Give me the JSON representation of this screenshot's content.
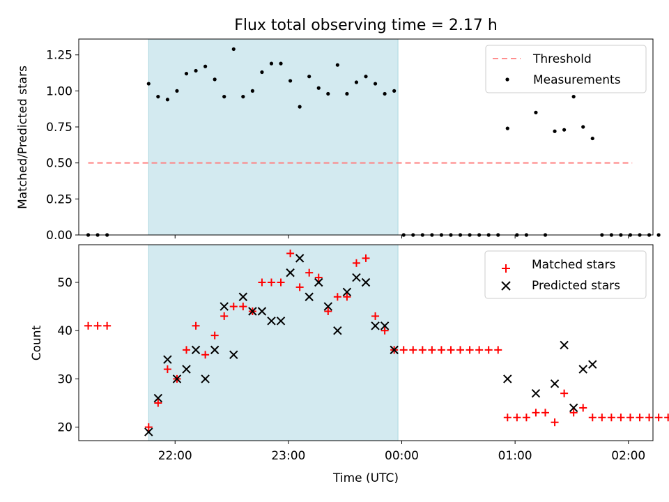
{
  "chart_data": [
    {
      "type": "scatter",
      "title": "Flux total observing time = 2.17 h",
      "xlabel": "",
      "ylabel": "Matched/Predicted stars",
      "ylim": [
        0,
        1.36
      ],
      "yticks": [
        "0.00",
        "0.25",
        "0.50",
        "0.75",
        "1.00",
        "1.25"
      ],
      "grid": false,
      "legend": {
        "placement": "top-right",
        "entries": [
          "Threshold",
          "Measurements"
        ]
      },
      "shaded_region": {
        "x": [
          "21:46",
          "23:58"
        ],
        "color": "#d3eaf0"
      },
      "threshold": {
        "name": "Threshold",
        "y": 0.5,
        "x": [
          "21:14",
          "02:02"
        ],
        "color": "#ff7f7f"
      },
      "series": [
        {
          "name": "Measurements",
          "color": "#000000",
          "points": [
            [
              "21:14",
              0.0
            ],
            [
              "21:19",
              0.0
            ],
            [
              "21:24",
              0.0
            ],
            [
              "21:46",
              1.05
            ],
            [
              "21:51",
              0.96
            ],
            [
              "21:56",
              0.94
            ],
            [
              "22:01",
              1.0
            ],
            [
              "22:06",
              1.12
            ],
            [
              "22:11",
              1.14
            ],
            [
              "22:16",
              1.17
            ],
            [
              "22:21",
              1.08
            ],
            [
              "22:26",
              0.96
            ],
            [
              "22:31",
              1.29
            ],
            [
              "22:36",
              0.96
            ],
            [
              "22:41",
              1.0
            ],
            [
              "22:46",
              1.13
            ],
            [
              "22:51",
              1.19
            ],
            [
              "22:56",
              1.19
            ],
            [
              "23:01",
              1.07
            ],
            [
              "23:06",
              0.89
            ],
            [
              "23:11",
              1.1
            ],
            [
              "23:16",
              1.02
            ],
            [
              "23:21",
              0.98
            ],
            [
              "23:26",
              1.18
            ],
            [
              "23:31",
              0.98
            ],
            [
              "23:36",
              1.06
            ],
            [
              "23:41",
              1.1
            ],
            [
              "23:46",
              1.05
            ],
            [
              "23:51",
              0.98
            ],
            [
              "23:56",
              1.0
            ],
            [
              "00:01",
              0.0
            ],
            [
              "00:06",
              0.0
            ],
            [
              "00:11",
              0.0
            ],
            [
              "00:16",
              0.0
            ],
            [
              "00:21",
              0.0
            ],
            [
              "00:26",
              0.0
            ],
            [
              "00:31",
              0.0
            ],
            [
              "00:36",
              0.0
            ],
            [
              "00:41",
              0.0
            ],
            [
              "00:46",
              0.0
            ],
            [
              "00:51",
              0.0
            ],
            [
              "00:56",
              0.74
            ],
            [
              "01:01",
              0.0
            ],
            [
              "01:06",
              0.0
            ],
            [
              "01:11",
              0.85
            ],
            [
              "01:16",
              0.0
            ],
            [
              "01:21",
              0.72
            ],
            [
              "01:26",
              0.73
            ],
            [
              "01:31",
              0.96
            ],
            [
              "01:36",
              0.75
            ],
            [
              "01:41",
              0.67
            ],
            [
              "01:46",
              0.0
            ],
            [
              "01:51",
              0.0
            ],
            [
              "01:56",
              0.0
            ],
            [
              "02:01",
              0.0
            ],
            [
              "02:06",
              0.0
            ],
            [
              "02:11",
              0.0
            ],
            [
              "02:16",
              0.0
            ]
          ]
        }
      ]
    },
    {
      "type": "scatter",
      "title": "",
      "xlabel": "Time (UTC)",
      "ylabel": "Count",
      "ylim": [
        17.2,
        57.8
      ],
      "yticks": [
        "20",
        "30",
        "40",
        "50"
      ],
      "xticks": [
        "22:00",
        "23:00",
        "00:00",
        "01:00",
        "02:00"
      ],
      "xlim": [
        "21:09",
        "02:13"
      ],
      "grid": false,
      "legend": {
        "placement": "top-right",
        "entries": [
          "Matched stars",
          "Predicted stars"
        ]
      },
      "shaded_region": {
        "x": [
          "21:46",
          "23:58"
        ],
        "color": "#d3eaf0"
      },
      "series": [
        {
          "name": "Matched stars",
          "marker": "+",
          "color": "#ff0000",
          "points": [
            [
              "21:14",
              41
            ],
            [
              "21:19",
              41
            ],
            [
              "21:24",
              41
            ],
            [
              "21:46",
              20
            ],
            [
              "21:51",
              25
            ],
            [
              "21:56",
              32
            ],
            [
              "22:01",
              30
            ],
            [
              "22:06",
              36
            ],
            [
              "22:11",
              41
            ],
            [
              "22:16",
              35
            ],
            [
              "22:21",
              39
            ],
            [
              "22:26",
              43
            ],
            [
              "22:31",
              45
            ],
            [
              "22:36",
              45
            ],
            [
              "22:41",
              44
            ],
            [
              "22:46",
              50
            ],
            [
              "22:51",
              50
            ],
            [
              "22:56",
              50
            ],
            [
              "23:01",
              56
            ],
            [
              "23:06",
              49
            ],
            [
              "23:11",
              52
            ],
            [
              "23:16",
              51
            ],
            [
              "23:21",
              44
            ],
            [
              "23:26",
              47
            ],
            [
              "23:31",
              47
            ],
            [
              "23:36",
              54
            ],
            [
              "23:41",
              55
            ],
            [
              "23:46",
              43
            ],
            [
              "23:51",
              40
            ],
            [
              "23:56",
              36
            ],
            [
              "00:01",
              36
            ],
            [
              "00:06",
              36
            ],
            [
              "00:11",
              36
            ],
            [
              "00:16",
              36
            ],
            [
              "00:21",
              36
            ],
            [
              "00:26",
              36
            ],
            [
              "00:31",
              36
            ],
            [
              "00:36",
              36
            ],
            [
              "00:41",
              36
            ],
            [
              "00:46",
              36
            ],
            [
              "00:51",
              36
            ],
            [
              "00:56",
              22
            ],
            [
              "01:01",
              22
            ],
            [
              "01:06",
              22
            ],
            [
              "01:11",
              23
            ],
            [
              "01:16",
              23
            ],
            [
              "01:21",
              21
            ],
            [
              "01:26",
              27
            ],
            [
              "01:31",
              23
            ],
            [
              "01:36",
              24
            ],
            [
              "01:41",
              22
            ],
            [
              "01:46",
              22
            ],
            [
              "01:51",
              22
            ],
            [
              "01:56",
              22
            ],
            [
              "02:01",
              22
            ],
            [
              "02:06",
              22
            ],
            [
              "02:11",
              22
            ],
            [
              "02:16",
              22
            ],
            [
              "02:21",
              22
            ]
          ]
        },
        {
          "name": "Predicted stars",
          "marker": "x",
          "color": "#000000",
          "points": [
            [
              "21:46",
              19
            ],
            [
              "21:51",
              26
            ],
            [
              "21:56",
              34
            ],
            [
              "22:01",
              30
            ],
            [
              "22:06",
              32
            ],
            [
              "22:11",
              36
            ],
            [
              "22:16",
              30
            ],
            [
              "22:21",
              36
            ],
            [
              "22:26",
              45
            ],
            [
              "22:31",
              35
            ],
            [
              "22:36",
              47
            ],
            [
              "22:41",
              44
            ],
            [
              "22:46",
              44
            ],
            [
              "22:51",
              42
            ],
            [
              "22:56",
              42
            ],
            [
              "23:01",
              52
            ],
            [
              "23:06",
              55
            ],
            [
              "23:11",
              47
            ],
            [
              "23:16",
              50
            ],
            [
              "23:21",
              45
            ],
            [
              "23:26",
              40
            ],
            [
              "23:31",
              48
            ],
            [
              "23:36",
              51
            ],
            [
              "23:41",
              50
            ],
            [
              "23:46",
              41
            ],
            [
              "23:51",
              41
            ],
            [
              "23:56",
              36
            ],
            [
              "00:56",
              30
            ],
            [
              "01:11",
              27
            ],
            [
              "01:21",
              29
            ],
            [
              "01:26",
              37
            ],
            [
              "01:31",
              24
            ],
            [
              "01:36",
              32
            ],
            [
              "01:41",
              33
            ]
          ]
        }
      ]
    }
  ]
}
